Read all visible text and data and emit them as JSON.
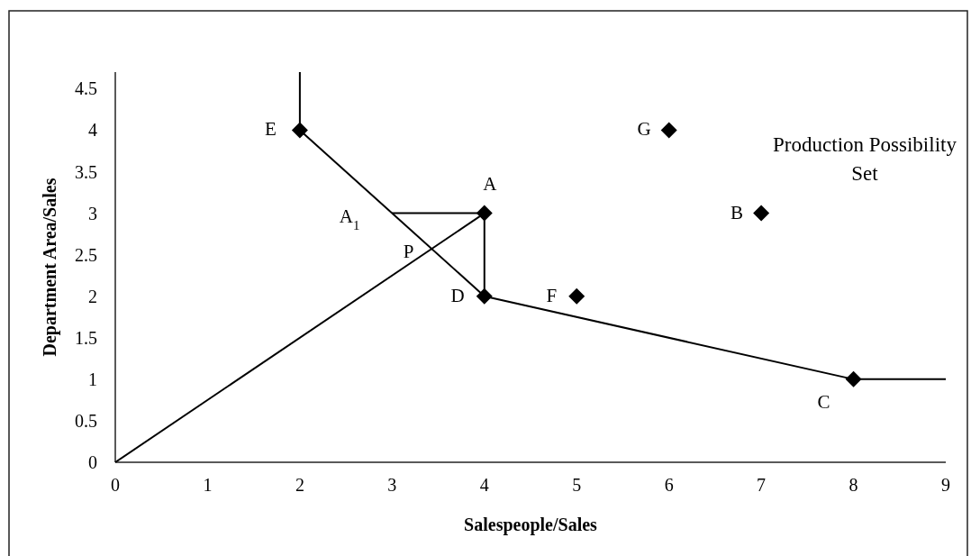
{
  "chart_data": {
    "type": "scatter",
    "xlabel": "Salespeople/Sales",
    "ylabel": "Department Area/Sales",
    "xlim": [
      0,
      9
    ],
    "xticks": [
      0,
      1,
      2,
      3,
      4,
      5,
      6,
      7,
      8,
      9
    ],
    "ylim": [
      0,
      4.7
    ],
    "yticks": [
      0,
      0.5,
      1,
      1.5,
      2,
      2.5,
      3,
      3.5,
      4,
      4.5
    ],
    "grid": false,
    "series": [
      {
        "type": "line",
        "color": "#000000",
        "marker": "none",
        "line_style": "solid",
        "x": [
          2,
          2,
          4,
          8,
          9
        ],
        "values": [
          4.7,
          4,
          2,
          1,
          1
        ]
      },
      {
        "type": "line",
        "color": "#000000",
        "marker": "none",
        "line_style": "solid",
        "x": [
          0,
          4
        ],
        "values": [
          0,
          3
        ]
      },
      {
        "type": "line",
        "color": "#000000",
        "marker": "none",
        "line_style": "solid",
        "x": [
          3,
          4,
          4
        ],
        "values": [
          3,
          3,
          2
        ]
      },
      {
        "color": "#000000",
        "marker": "diamond",
        "x": [
          2,
          4,
          4,
          5,
          6,
          7,
          8
        ],
        "values": [
          4,
          3,
          2,
          2,
          4,
          3,
          1
        ]
      }
    ],
    "annotations": [
      {
        "text": "E",
        "x": 2,
        "y": 4
      },
      {
        "text": "A",
        "x": 4,
        "y": 3
      },
      {
        "text": "A$_{1}$",
        "x": 3,
        "y": 3
      },
      {
        "text": "P",
        "x": 3.43,
        "y": 2.57
      },
      {
        "text": "D",
        "x": 4,
        "y": 2
      },
      {
        "text": "F",
        "x": 5,
        "y": 2
      },
      {
        "text": "G",
        "x": 6,
        "y": 4
      },
      {
        "text": "B",
        "x": 7,
        "y": 3
      },
      {
        "text": "C",
        "x": 8,
        "y": 1
      },
      "Production Possibility\nSet"
    ]
  }
}
